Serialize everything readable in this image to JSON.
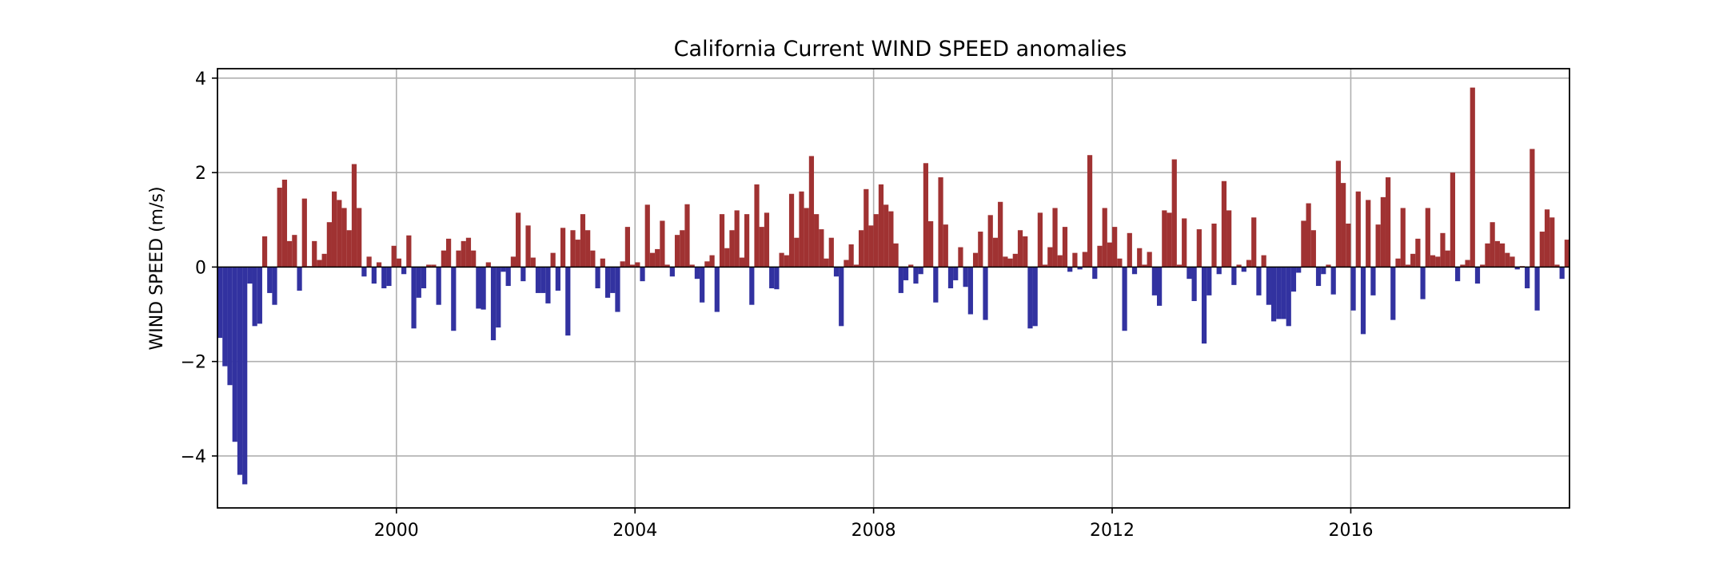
{
  "chart_data": {
    "type": "bar",
    "title": "California Current WIND SPEED anomalies",
    "xlabel": "",
    "ylabel": "WIND SPEED (m/s)",
    "x_start": "1997-01",
    "x_frequency": "monthly",
    "xlim": [
      "1997-01",
      "2019-09"
    ],
    "ylim": [
      -5.1,
      4.2
    ],
    "x_ticks": [
      "2000",
      "2004",
      "2008",
      "2012",
      "2016"
    ],
    "y_ticks": [
      "4",
      "2",
      "0",
      "−2",
      "−4"
    ],
    "grid": true,
    "colors": {
      "positive": "#a03232",
      "negative": "#3232a0"
    },
    "values": [
      -1.5,
      -2.1,
      -2.5,
      -3.7,
      -4.4,
      -4.6,
      -0.35,
      -1.25,
      -1.2,
      0.65,
      -0.55,
      -0.8,
      1.68,
      1.85,
      0.55,
      0.68,
      -0.5,
      1.45,
      0.02,
      0.55,
      0.15,
      0.28,
      0.95,
      1.6,
      1.42,
      1.25,
      0.78,
      2.18,
      1.25,
      -0.2,
      0.22,
      -0.35,
      0.1,
      -0.45,
      -0.4,
      0.45,
      0.18,
      -0.15,
      0.67,
      -1.3,
      -0.65,
      -0.45,
      0.05,
      0.05,
      -0.8,
      0.35,
      0.6,
      -1.35,
      0.35,
      0.55,
      0.62,
      0.35,
      -0.88,
      -0.9,
      0.1,
      -1.55,
      -1.28,
      -0.1,
      -0.4,
      0.22,
      1.15,
      -0.3,
      0.88,
      0.2,
      -0.55,
      -0.55,
      -0.77,
      0.3,
      -0.5,
      0.83,
      -1.45,
      0.78,
      0.58,
      1.12,
      0.78,
      0.35,
      -0.45,
      0.18,
      -0.65,
      -0.55,
      -0.95,
      0.12,
      0.85,
      0.05,
      0.1,
      -0.3,
      1.32,
      0.3,
      0.38,
      0.98,
      0.05,
      -0.2,
      0.68,
      0.78,
      1.33,
      0.05,
      -0.25,
      -0.75,
      0.12,
      0.25,
      -0.95,
      1.12,
      0.4,
      0.78,
      1.2,
      0.2,
      1.12,
      -0.8,
      1.75,
      0.85,
      1.15,
      -0.45,
      -0.47,
      0.3,
      0.25,
      1.55,
      0.62,
      1.6,
      1.25,
      2.35,
      1.12,
      0.8,
      0.18,
      0.62,
      -0.2,
      -1.25,
      0.15,
      0.48,
      0.05,
      0.78,
      1.65,
      0.88,
      1.12,
      1.75,
      1.32,
      1.18,
      0.5,
      -0.55,
      -0.28,
      0.05,
      -0.35,
      -0.15,
      2.2,
      0.97,
      -0.75,
      1.9,
      0.9,
      -0.45,
      -0.28,
      0.42,
      -0.42,
      -1.0,
      0.3,
      0.75,
      -1.12,
      1.1,
      0.62,
      1.38,
      0.22,
      0.18,
      0.28,
      0.78,
      0.65,
      -1.3,
      -1.25,
      1.15,
      0.05,
      0.42,
      1.25,
      0.25,
      0.85,
      -0.1,
      0.3,
      -0.05,
      0.32,
      2.37,
      -0.25,
      0.45,
      1.25,
      0.52,
      0.85,
      0.18,
      -1.35,
      0.72,
      -0.15,
      0.4,
      0.05,
      0.32,
      -0.6,
      -0.82,
      1.2,
      1.15,
      2.28,
      0.05,
      1.03,
      -0.25,
      -0.72,
      0.8,
      -1.62,
      -0.6,
      0.92,
      -0.15,
      1.82,
      1.2,
      -0.38,
      0.05,
      -0.1,
      0.15,
      1.05,
      -0.6,
      0.25,
      -0.8,
      -1.15,
      -1.1,
      -1.1,
      -1.25,
      -0.52,
      -0.12,
      0.98,
      1.35,
      0.78,
      -0.4,
      -0.15,
      0.05,
      -0.58,
      2.25,
      1.78,
      0.92,
      -0.92,
      1.6,
      -1.42,
      1.42,
      -0.6,
      0.9,
      1.48,
      1.9,
      -1.12,
      0.18,
      1.25,
      0.05,
      0.28,
      0.6,
      -0.68,
      1.25,
      0.25,
      0.22,
      0.72,
      0.35,
      2.0,
      -0.3,
      0.05,
      0.15,
      3.8,
      -0.35,
      0.05,
      0.5,
      0.95,
      0.55,
      0.5,
      0.3,
      0.22,
      -0.05,
      0.02,
      -0.45,
      2.5,
      -0.92,
      0.75,
      1.22,
      1.05,
      0.05,
      -0.25,
      0.58
    ]
  }
}
